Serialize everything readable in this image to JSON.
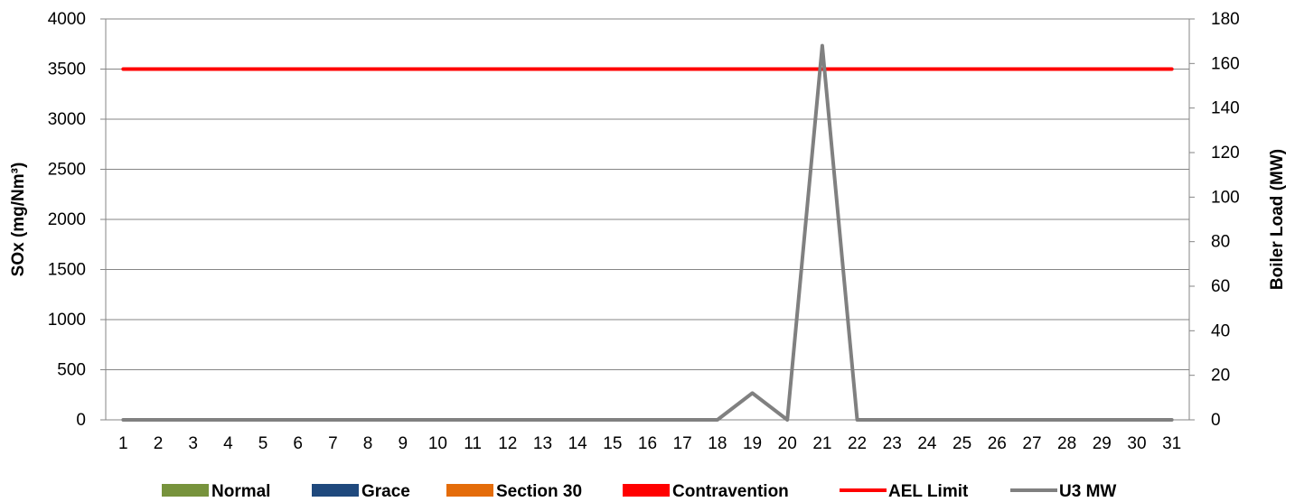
{
  "chart_data": {
    "type": "line",
    "title": "",
    "categories": [
      "1",
      "2",
      "3",
      "4",
      "5",
      "6",
      "7",
      "8",
      "9",
      "10",
      "11",
      "12",
      "13",
      "14",
      "15",
      "16",
      "17",
      "18",
      "19",
      "20",
      "21",
      "22",
      "23",
      "24",
      "25",
      "26",
      "27",
      "28",
      "29",
      "30",
      "31"
    ],
    "y_left": {
      "label": "SOx (mg/Nm³)",
      "min": 0,
      "max": 4000,
      "ticks": [
        "0",
        "500",
        "1000",
        "1500",
        "2000",
        "2500",
        "3000",
        "3500",
        "4000"
      ]
    },
    "y_right": {
      "label": "Boiler Load (MW)",
      "min": 0,
      "max": 180,
      "ticks": [
        "0",
        "20",
        "40",
        "60",
        "80",
        "100",
        "120",
        "140",
        "160",
        "180"
      ]
    },
    "grid": true,
    "legend_position": "bottom",
    "series": [
      {
        "name": "Normal",
        "kind": "bar",
        "axis": "left",
        "color": "#77933C",
        "values": [
          0,
          0,
          0,
          0,
          0,
          0,
          0,
          0,
          0,
          0,
          0,
          0,
          0,
          0,
          0,
          0,
          0,
          0,
          0,
          0,
          0,
          0,
          0,
          0,
          0,
          0,
          0,
          0,
          0,
          0,
          0
        ]
      },
      {
        "name": "Grace",
        "kind": "bar",
        "axis": "left",
        "color": "#1F497D",
        "values": [
          0,
          0,
          0,
          0,
          0,
          0,
          0,
          0,
          0,
          0,
          0,
          0,
          0,
          0,
          0,
          0,
          0,
          0,
          0,
          0,
          0,
          0,
          0,
          0,
          0,
          0,
          0,
          0,
          0,
          0,
          0
        ]
      },
      {
        "name": "Section 30",
        "kind": "bar",
        "axis": "left",
        "color": "#E46C0A",
        "values": [
          0,
          0,
          0,
          0,
          0,
          0,
          0,
          0,
          0,
          0,
          0,
          0,
          0,
          0,
          0,
          0,
          0,
          0,
          0,
          0,
          0,
          0,
          0,
          0,
          0,
          0,
          0,
          0,
          0,
          0,
          0
        ]
      },
      {
        "name": "Contravention",
        "kind": "bar",
        "axis": "left",
        "color": "#FF0000",
        "values": [
          0,
          0,
          0,
          0,
          0,
          0,
          0,
          0,
          0,
          0,
          0,
          0,
          0,
          0,
          0,
          0,
          0,
          0,
          0,
          0,
          0,
          0,
          0,
          0,
          0,
          0,
          0,
          0,
          0,
          0,
          0
        ]
      },
      {
        "name": "AEL Limit",
        "kind": "line",
        "axis": "left",
        "color": "#FF0000",
        "values": [
          3500,
          3500,
          3500,
          3500,
          3500,
          3500,
          3500,
          3500,
          3500,
          3500,
          3500,
          3500,
          3500,
          3500,
          3500,
          3500,
          3500,
          3500,
          3500,
          3500,
          3500,
          3500,
          3500,
          3500,
          3500,
          3500,
          3500,
          3500,
          3500,
          3500,
          3500
        ]
      },
      {
        "name": "U3 MW",
        "kind": "line",
        "axis": "right",
        "color": "#808080",
        "values": [
          0,
          0,
          0,
          0,
          0,
          0,
          0,
          0,
          0,
          0,
          0,
          0,
          0,
          0,
          0,
          0,
          0,
          0,
          12,
          0,
          168,
          0,
          0,
          0,
          0,
          0,
          0,
          0,
          0,
          0,
          0
        ]
      }
    ]
  }
}
